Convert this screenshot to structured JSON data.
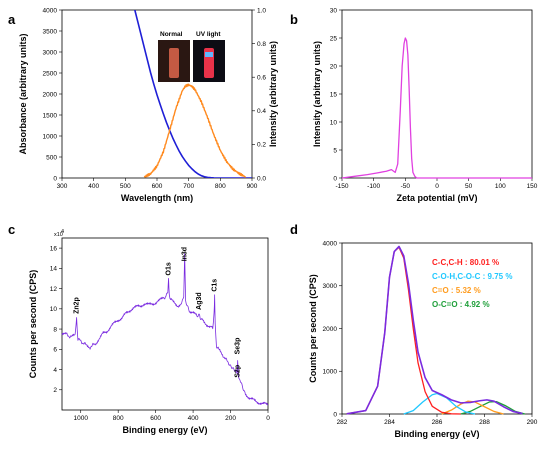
{
  "figure": {
    "panel_letters": [
      "a",
      "b",
      "c",
      "d"
    ]
  },
  "chart_data": [
    {
      "panel": "a",
      "type": "line",
      "xlabel": "Wavelength (nm)",
      "ylabel": "Absorbance (arbitrary units)",
      "ylabel_right": "Intensity (arbitrary units)",
      "xlim": [
        300,
        900
      ],
      "ylim": [
        0,
        4000
      ],
      "ylim_right": [
        0,
        1.0
      ],
      "x_ticks": [
        300,
        400,
        500,
        600,
        700,
        800,
        900
      ],
      "y_ticks": [
        0,
        500,
        1000,
        1500,
        2000,
        2500,
        3000,
        3500,
        4000
      ],
      "y_ticks_right": [
        0.0,
        0.2,
        0.4,
        0.6,
        0.8,
        1.0
      ],
      "inset_labels": [
        "Normal",
        "UV light"
      ],
      "colors": {
        "absorbance": "#1f1fd6",
        "emission": "#ff8a1f"
      },
      "series": [
        {
          "axis": "left",
          "x": [
            530,
            540,
            550,
            560,
            570,
            580,
            590,
            600,
            610,
            620,
            630,
            640,
            650,
            660,
            670,
            680,
            690,
            700,
            710,
            720,
            730,
            740,
            750,
            760,
            770,
            780,
            800,
            900
          ],
          "y": [
            4000,
            3700,
            3400,
            3100,
            2800,
            2500,
            2230,
            1980,
            1750,
            1530,
            1320,
            1130,
            950,
            790,
            640,
            510,
            400,
            300,
            220,
            150,
            95,
            55,
            30,
            15,
            8,
            3,
            0,
            0
          ]
        },
        {
          "axis": "right",
          "x": [
            560,
            580,
            600,
            620,
            640,
            660,
            680,
            690,
            700,
            710,
            720,
            740,
            760,
            780,
            800,
            820,
            840,
            860,
            880
          ],
          "y": [
            0.0,
            0.02,
            0.07,
            0.16,
            0.29,
            0.42,
            0.52,
            0.545,
            0.55,
            0.54,
            0.52,
            0.45,
            0.36,
            0.26,
            0.17,
            0.1,
            0.05,
            0.02,
            0.0
          ]
        }
      ]
    },
    {
      "panel": "b",
      "type": "line",
      "xlabel": "Zeta potential (mV)",
      "ylabel": "Intensity (arbitrary units)",
      "xlim": [
        -150,
        150
      ],
      "ylim": [
        0,
        30
      ],
      "x_ticks": [
        -150,
        -100,
        -50,
        0,
        50,
        100,
        150
      ],
      "y_ticks": [
        0,
        5,
        10,
        15,
        20,
        25,
        30
      ],
      "colors": {
        "line": "#e040e0"
      },
      "series": [
        {
          "x": [
            -150,
            -130,
            -110,
            -95,
            -80,
            -72,
            -66,
            -62,
            -58,
            -55,
            -52,
            -50,
            -48,
            -46,
            -44,
            -42,
            -40,
            -38,
            -35,
            -32,
            -20,
            0,
            50,
            100,
            150
          ],
          "y": [
            0,
            0.3,
            0.6,
            0.9,
            1.2,
            1.5,
            1.0,
            2.5,
            12,
            20,
            24,
            25,
            24.5,
            22,
            16,
            9,
            3.5,
            1.0,
            0.3,
            0,
            0,
            0,
            0,
            0,
            0
          ]
        }
      ]
    },
    {
      "panel": "c",
      "type": "line",
      "xlabel": "Binding energy (eV)",
      "ylabel": "Counts per second (CPS)",
      "axis_multiplier": "x10",
      "axis_multiplier_exp": "4",
      "xlim": [
        1100,
        0
      ],
      "ylim": [
        0,
        17
      ],
      "x_ticks": [
        1000,
        800,
        600,
        400,
        200,
        0
      ],
      "y_ticks": [
        2,
        4,
        6,
        8,
        10,
        12,
        14,
        16
      ],
      "colors": {
        "line": "#7a2be0"
      },
      "peak_labels": [
        {
          "label": "Zn2p",
          "x": 1022,
          "y": 9.3
        },
        {
          "label": "O1s",
          "x": 531,
          "y": 13.1
        },
        {
          "label": "In3d",
          "x": 445,
          "y": 14.5
        },
        {
          "label": "Ag3d",
          "x": 368,
          "y": 9.7
        },
        {
          "label": "C1s",
          "x": 285,
          "y": 11.5
        },
        {
          "label": "Se3p",
          "x": 162,
          "y": 5.3
        },
        {
          "label": "S2p",
          "x": 163,
          "y": 3.0
        }
      ],
      "series": [
        {
          "x": [
            1100,
            1080,
            1050,
            1030,
            1022,
            1015,
            1000,
            970,
            950,
            920,
            900,
            880,
            860,
            840,
            820,
            800,
            780,
            760,
            740,
            720,
            700,
            680,
            660,
            640,
            620,
            600,
            580,
            560,
            545,
            535,
            531,
            527,
            520,
            500,
            480,
            460,
            450,
            445,
            440,
            430,
            420,
            400,
            380,
            370,
            365,
            360,
            350,
            330,
            310,
            295,
            288,
            285,
            282,
            275,
            260,
            240,
            225,
            210,
            200,
            190,
            180,
            170,
            165,
            162,
            158,
            150,
            140,
            130,
            120,
            100,
            80,
            60,
            40,
            20,
            0
          ],
          "y": [
            7.6,
            7.5,
            7.2,
            7.4,
            9.0,
            7.0,
            6.8,
            6.4,
            6.2,
            6.6,
            7.0,
            7.6,
            7.8,
            8.2,
            8.6,
            8.9,
            9.1,
            9.5,
            9.8,
            10.1,
            10.2,
            10.3,
            10.5,
            10.4,
            10.5,
            10.6,
            10.8,
            11.1,
            11.2,
            11.6,
            13.0,
            11.4,
            10.9,
            10.6,
            10.3,
            10.5,
            11.2,
            15.6,
            10.7,
            10.2,
            9.8,
            9.6,
            9.3,
            9.5,
            9.4,
            9.1,
            8.9,
            8.5,
            8.2,
            8.1,
            9.5,
            11.3,
            8.5,
            6.3,
            5.9,
            5.4,
            5.0,
            4.6,
            4.3,
            4.1,
            3.9,
            3.7,
            3.6,
            4.8,
            3.4,
            3.0,
            2.5,
            2.0,
            1.6,
            1.2,
            1.0,
            0.8,
            0.7,
            0.6,
            0.5
          ]
        }
      ]
    },
    {
      "panel": "d",
      "type": "line",
      "xlabel": "Binding energy (eV)",
      "ylabel": "Counts per second (CPS)",
      "xlim": [
        282,
        290
      ],
      "ylim": [
        0,
        4000
      ],
      "x_ticks": [
        282,
        284,
        286,
        288,
        290
      ],
      "y_ticks": [
        0,
        1000,
        2000,
        3000,
        4000
      ],
      "legend": [
        {
          "label": "C-C,C-H : 80.01 %",
          "color": "#ff2020"
        },
        {
          "label": "C-O-H,C-O-C : 9.75 %",
          "color": "#20c8ff"
        },
        {
          "label": "C=O : 5.32 %",
          "color": "#ff9c1f"
        },
        {
          "label": "O-C=O : 4.92 %",
          "color": "#1f9f3a"
        }
      ],
      "colors": {
        "envelope": "#7a2be0",
        "cc": "#ff2020",
        "coh": "#20c8ff",
        "co": "#ff9c1f",
        "oco": "#1f9f3a"
      },
      "series": [
        {
          "component": "envelope",
          "x": [
            282.2,
            283.0,
            283.5,
            283.8,
            284.0,
            284.2,
            284.4,
            284.6,
            284.8,
            285.0,
            285.2,
            285.5,
            285.8,
            286.2,
            286.6,
            287.0,
            287.4,
            287.8,
            288.1,
            288.4,
            288.8,
            289.2,
            289.6
          ],
          "y": [
            5,
            80,
            650,
            1900,
            3200,
            3800,
            3920,
            3700,
            3050,
            2200,
            1450,
            850,
            550,
            450,
            330,
            260,
            270,
            310,
            330,
            300,
            170,
            60,
            10
          ]
        },
        {
          "component": "cc",
          "x": [
            282.2,
            283.0,
            283.5,
            283.8,
            284.0,
            284.2,
            284.4,
            284.6,
            284.8,
            285.0,
            285.2,
            285.5,
            285.8,
            286.2,
            286.6,
            287.0
          ],
          "y": [
            5,
            80,
            650,
            1900,
            3200,
            3800,
            3900,
            3650,
            2900,
            2000,
            1200,
            520,
            180,
            40,
            5,
            0
          ]
        },
        {
          "component": "coh",
          "x": [
            284.6,
            285.0,
            285.4,
            285.8,
            286.0,
            286.4,
            286.8,
            287.2,
            287.6
          ],
          "y": [
            0,
            80,
            280,
            450,
            480,
            380,
            180,
            50,
            0
          ]
        },
        {
          "component": "co",
          "x": [
            286.2,
            286.6,
            287.0,
            287.3,
            287.6,
            288.0,
            288.4,
            288.8
          ],
          "y": [
            0,
            90,
            230,
            300,
            280,
            170,
            60,
            0
          ]
        },
        {
          "component": "oco",
          "x": [
            287.0,
            287.4,
            287.8,
            288.2,
            288.5,
            288.9,
            289.3,
            289.7
          ],
          "y": [
            0,
            60,
            170,
            280,
            290,
            190,
            60,
            0
          ]
        }
      ]
    }
  ]
}
